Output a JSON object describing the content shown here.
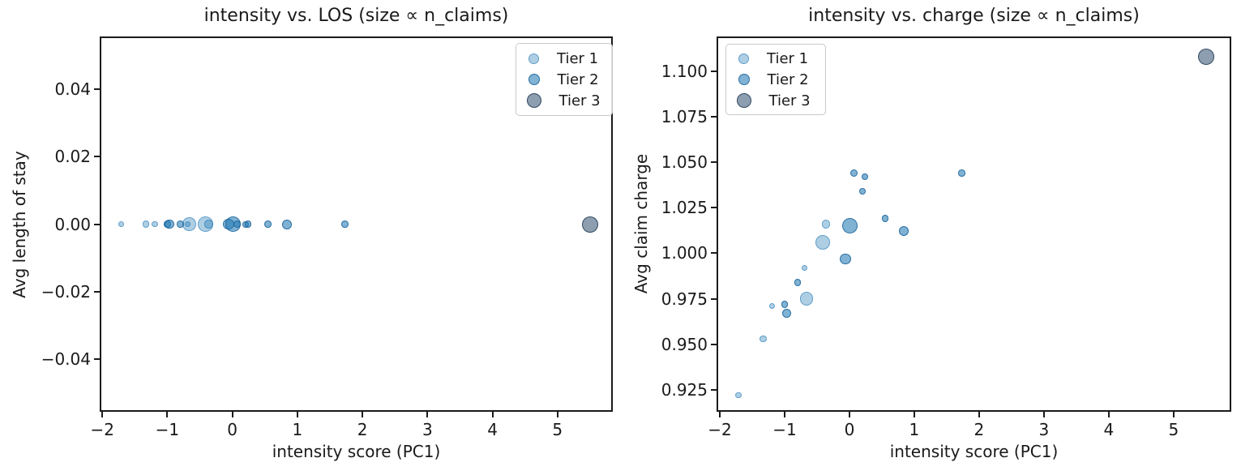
{
  "figure": {
    "background": "#ffffff"
  },
  "tier_styles": [
    {
      "label": "Tier 1",
      "fill": "rgba(31,119,180,0.36)",
      "edge": "rgba(31,119,180,0.55)"
    },
    {
      "label": "Tier 2",
      "fill": "rgba(31,119,180,0.57)",
      "edge": "rgba(21,95,150,0.80)"
    },
    {
      "label": "Tier 3",
      "fill": "rgba(47,79,111,0.55)",
      "edge": "rgba(38,62,88,0.90)"
    }
  ],
  "legend": {
    "items": [
      "Tier 1",
      "Tier 2",
      "Tier 3"
    ]
  },
  "chart_data": [
    {
      "type": "scatter",
      "title": "intensity vs. LOS (size ∝ n_claims)",
      "xlabel": "intensity score (PC1)",
      "ylabel": "Avg length of stay",
      "xlim": [
        -2.04,
        5.85
      ],
      "ylim": [
        -0.0556,
        0.0556
      ],
      "grid": false,
      "legend_position": "upper-right",
      "xticks": {
        "values": [
          -2,
          -1,
          0,
          1,
          2,
          3,
          4,
          5
        ],
        "labels": [
          "−2",
          "−1",
          "0",
          "1",
          "2",
          "3",
          "4",
          "5"
        ]
      },
      "yticks": {
        "values": [
          0.04,
          0.02,
          0.0,
          -0.02,
          -0.04
        ],
        "labels": [
          "0.04",
          "0.02",
          "0.00",
          "−0.02",
          "−0.04"
        ]
      },
      "series": [
        {
          "name": "Tier 1",
          "tier": 0,
          "points": [
            [
              -1.71,
              0.0,
              3.7
            ],
            [
              -1.33,
              0.0,
              4.3
            ],
            [
              -1.19,
              0.0,
              3.7
            ],
            [
              -0.69,
              0.0,
              3.5
            ],
            [
              -0.66,
              0.0,
              8.3
            ],
            [
              -0.41,
              0.0,
              9.3
            ],
            [
              -0.36,
              0.0,
              5.3
            ]
          ]
        },
        {
          "name": "Tier 2",
          "tier": 1,
          "points": [
            [
              -1.0,
              0.0,
              4.3
            ],
            [
              -0.97,
              0.0,
              5.7
            ],
            [
              -0.8,
              0.0,
              4.3
            ],
            [
              -0.06,
              0.0,
              6.7
            ],
            [
              0.01,
              0.0,
              9.7
            ],
            [
              0.07,
              0.0,
              4.7
            ],
            [
              0.2,
              0.0,
              4.0
            ],
            [
              0.24,
              0.0,
              4.3
            ],
            [
              0.55,
              0.0,
              4.3
            ],
            [
              0.84,
              0.0,
              6.0
            ],
            [
              1.73,
              0.0,
              4.3
            ]
          ]
        },
        {
          "name": "Tier 3",
          "tier": 2,
          "points": [
            [
              5.5,
              0.0,
              10.0
            ]
          ]
        }
      ]
    },
    {
      "type": "scatter",
      "title": "intensity vs. charge (size ∝ n_claims)",
      "xlabel": "intensity score (PC1)",
      "ylabel": "Avg claim charge",
      "xlim": [
        -2.05,
        5.89
      ],
      "ylim": [
        0.913,
        1.119
      ],
      "grid": false,
      "legend_position": "upper-left",
      "xticks": {
        "values": [
          -2,
          -1,
          0,
          1,
          2,
          3,
          4,
          5
        ],
        "labels": [
          "−2",
          "−1",
          "0",
          "1",
          "2",
          "3",
          "4",
          "5"
        ]
      },
      "yticks": {
        "values": [
          1.1,
          1.075,
          1.05,
          1.025,
          1.0,
          0.975,
          0.95,
          0.925
        ],
        "labels": [
          "1.100",
          "1.075",
          "1.050",
          "1.025",
          "1.000",
          "0.975",
          "0.950",
          "0.925"
        ]
      },
      "series": [
        {
          "name": "Tier 1",
          "tier": 0,
          "points": [
            [
              -1.71,
              0.922,
              3.7
            ],
            [
              -1.33,
              0.953,
              4.3
            ],
            [
              -1.19,
              0.971,
              3.7
            ],
            [
              -0.69,
              0.992,
              3.5
            ],
            [
              -0.66,
              0.975,
              8.3
            ],
            [
              -0.41,
              1.006,
              9.3
            ],
            [
              -0.36,
              1.016,
              5.3
            ]
          ]
        },
        {
          "name": "Tier 2",
          "tier": 1,
          "points": [
            [
              -1.0,
              0.972,
              4.3
            ],
            [
              -0.97,
              0.967,
              5.7
            ],
            [
              -0.8,
              0.984,
              4.3
            ],
            [
              -0.06,
              0.997,
              6.7
            ],
            [
              0.01,
              1.015,
              9.7
            ],
            [
              0.07,
              1.044,
              4.7
            ],
            [
              0.2,
              1.034,
              4.0
            ],
            [
              0.24,
              1.042,
              4.3
            ],
            [
              0.55,
              1.019,
              4.3
            ],
            [
              0.84,
              1.012,
              6.0
            ],
            [
              1.73,
              1.044,
              4.3
            ]
          ]
        },
        {
          "name": "Tier 3",
          "tier": 2,
          "points": [
            [
              5.5,
              1.108,
              10.0
            ]
          ]
        }
      ]
    }
  ]
}
